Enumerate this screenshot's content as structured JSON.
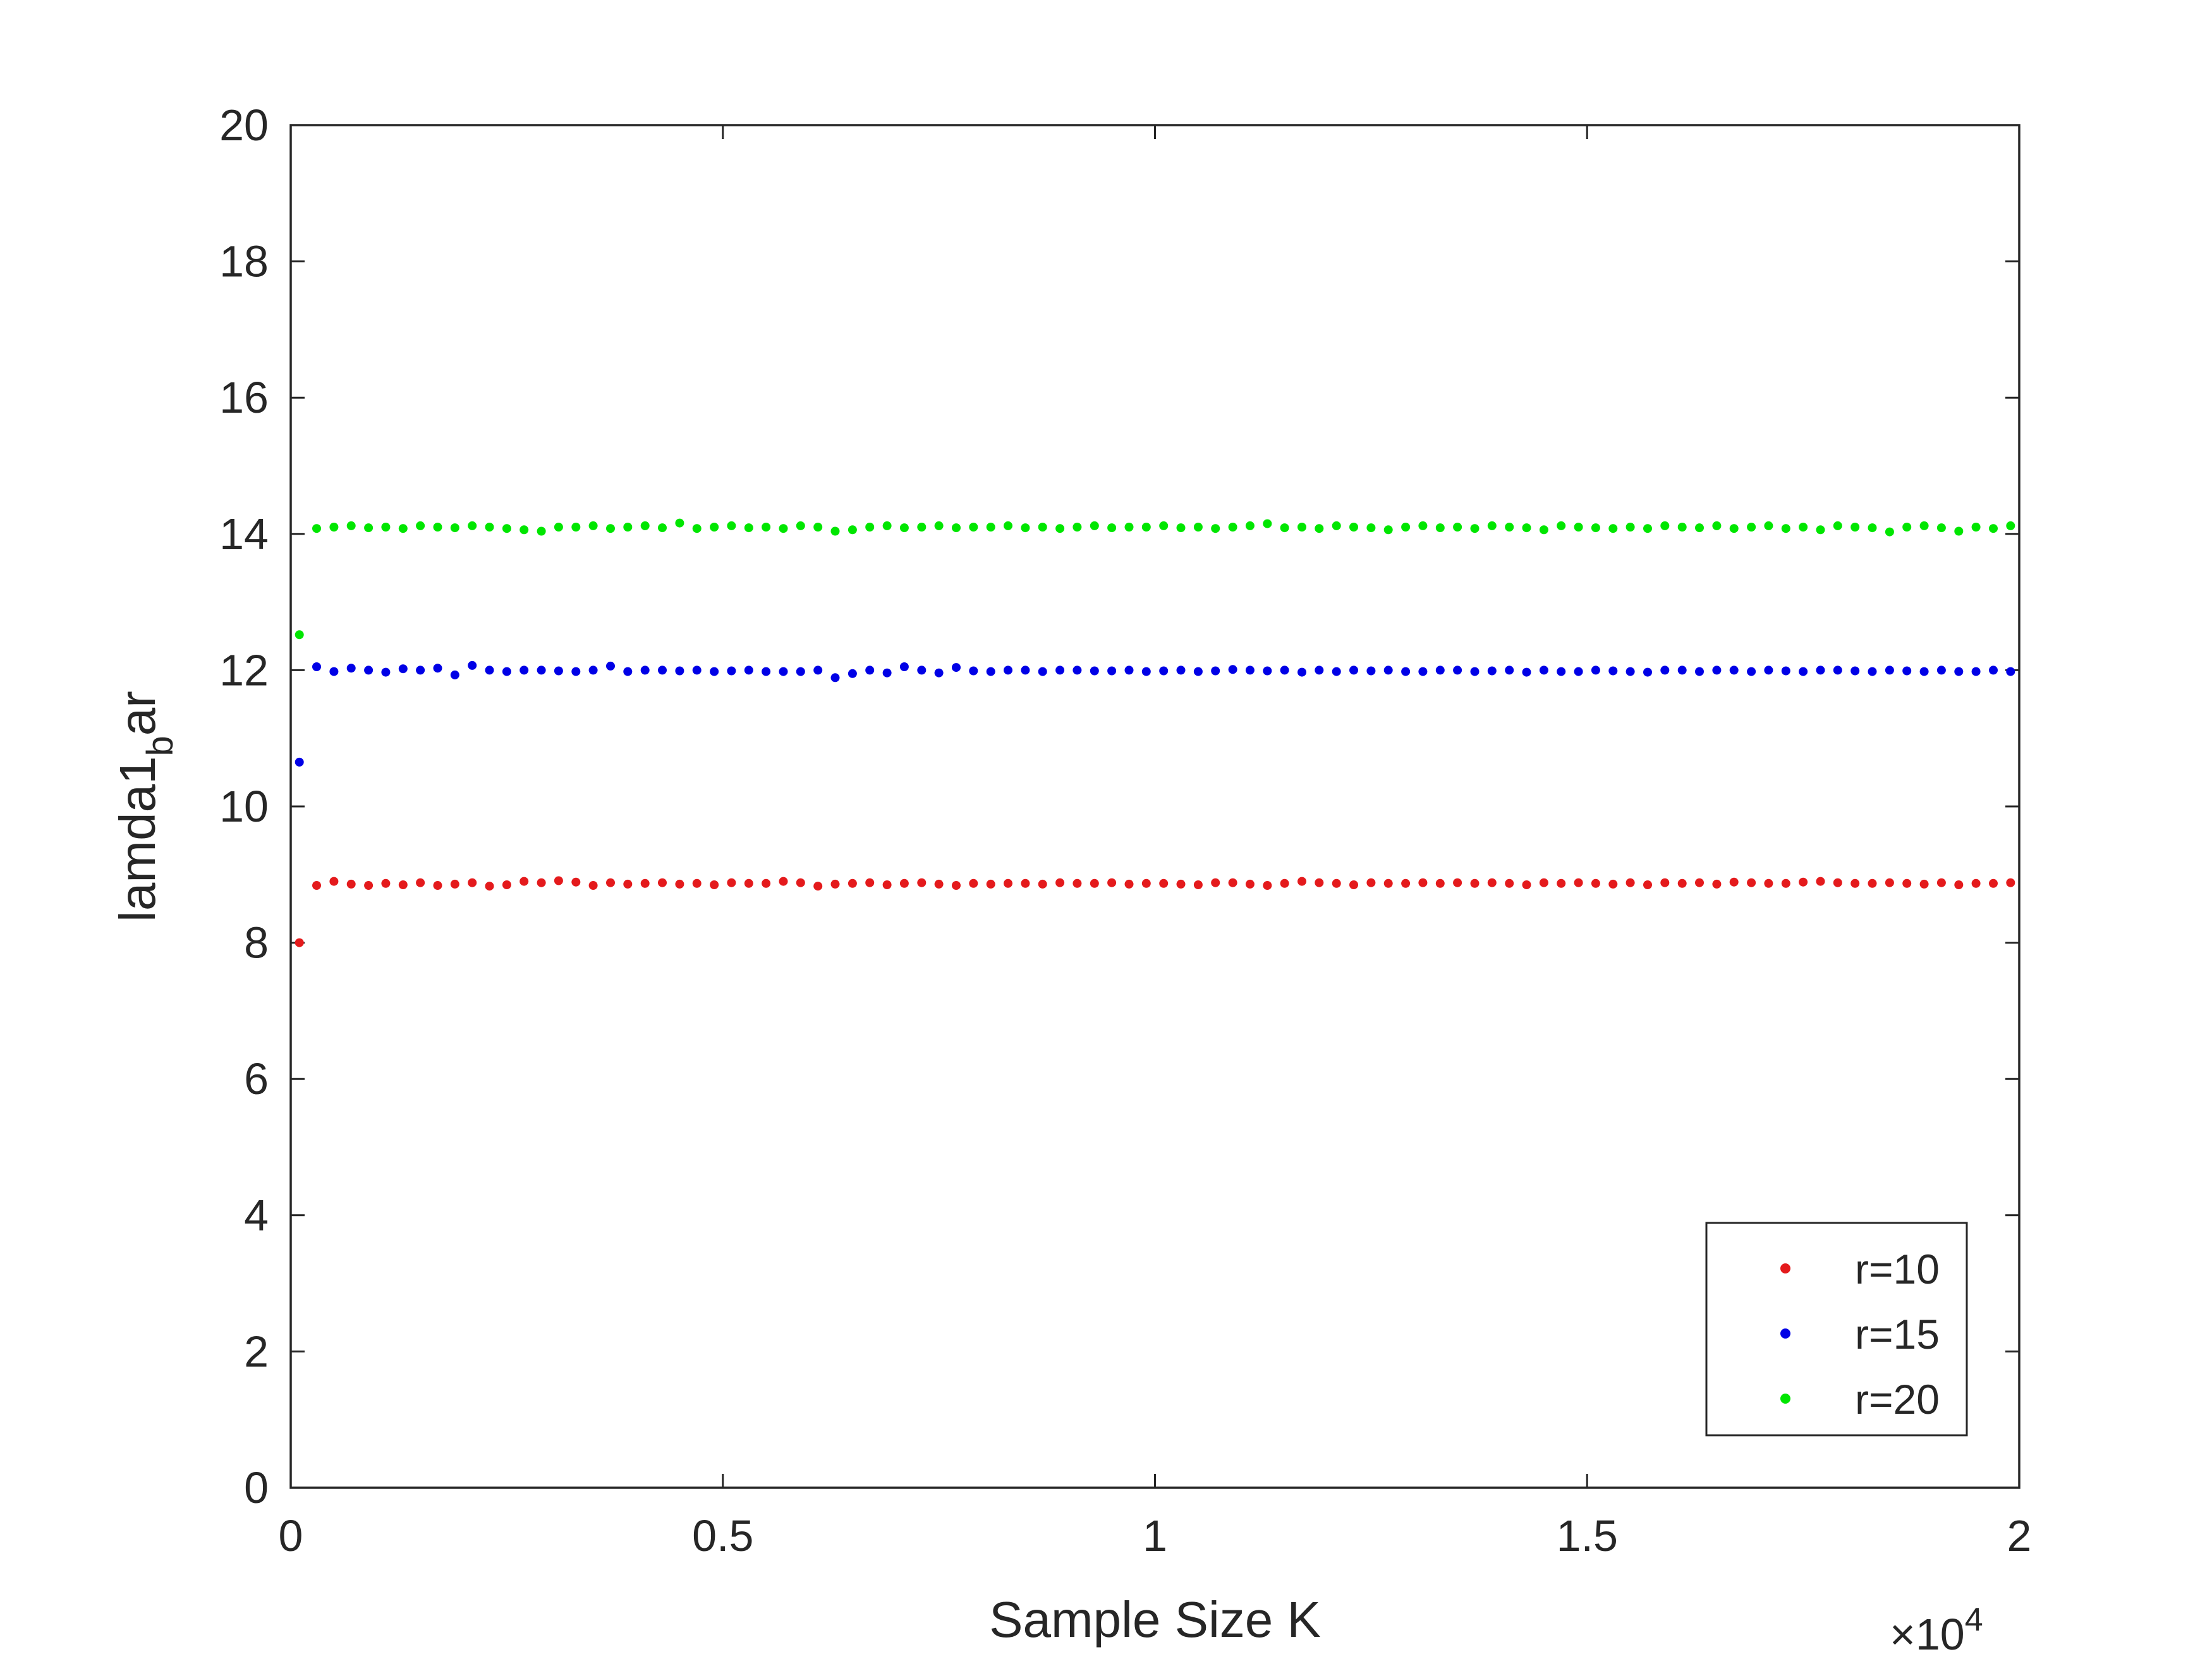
{
  "chart_data": {
    "type": "scatter",
    "xlabel": "Sample Size K",
    "ylabel_main": "lamda1",
    "ylabel_sub": "b",
    "ylabel_tail": "ar",
    "x_exponent_prefix": "×10",
    "x_exponent_power": "4",
    "xlim": [
      0,
      20000
    ],
    "ylim": [
      0,
      20
    ],
    "x_ticks": [
      0,
      5000,
      10000,
      15000,
      20000
    ],
    "x_tick_labels": [
      "0",
      "0.5",
      "1",
      "1.5",
      "2"
    ],
    "y_ticks": [
      0,
      2,
      4,
      6,
      8,
      10,
      12,
      14,
      16,
      18,
      20
    ],
    "y_tick_labels": [
      "0",
      "2",
      "4",
      "6",
      "8",
      "10",
      "12",
      "14",
      "16",
      "18",
      "20"
    ],
    "grid": false,
    "legend_position": "bottom-right",
    "x_start": 100,
    "x_step": 200,
    "series": [
      {
        "name": "r=10",
        "color": "#e41a1c",
        "values": [
          8.0,
          8.84,
          8.9,
          8.86,
          8.84,
          8.87,
          8.85,
          8.88,
          8.84,
          8.86,
          8.88,
          8.83,
          8.85,
          8.9,
          8.88,
          8.91,
          8.89,
          8.84,
          8.88,
          8.86,
          8.87,
          8.88,
          8.86,
          8.87,
          8.85,
          8.88,
          8.87,
          8.87,
          8.9,
          8.88,
          8.83,
          8.86,
          8.87,
          8.88,
          8.85,
          8.87,
          8.88,
          8.86,
          8.84,
          8.87,
          8.86,
          8.87,
          8.87,
          8.86,
          8.88,
          8.87,
          8.87,
          8.88,
          8.86,
          8.87,
          8.87,
          8.86,
          8.85,
          8.88,
          8.88,
          8.86,
          8.84,
          8.87,
          8.9,
          8.88,
          8.87,
          8.85,
          8.88,
          8.87,
          8.87,
          8.88,
          8.87,
          8.88,
          8.87,
          8.88,
          8.87,
          8.85,
          8.88,
          8.87,
          8.88,
          8.87,
          8.86,
          8.88,
          8.85,
          8.88,
          8.87,
          8.88,
          8.86,
          8.89,
          8.88,
          8.87,
          8.87,
          8.89,
          8.9,
          8.88,
          8.87,
          8.87,
          8.88,
          8.87,
          8.86,
          8.88,
          8.85,
          8.87,
          8.87,
          8.88,
          8.87,
          8.86,
          8.88,
          8.87,
          8.87,
          8.86,
          8.89,
          8.87,
          8.88,
          8.86,
          8.87,
          8.88,
          8.87,
          8.86,
          8.85,
          8.87,
          8.86,
          8.87,
          8.89,
          8.86,
          8.87,
          8.88,
          8.87,
          8.88,
          8.86,
          8.87,
          8.88,
          8.86,
          8.87,
          8.87,
          8.86,
          8.87,
          8.84,
          8.87,
          8.88,
          8.85,
          8.86,
          8.88,
          8.9,
          8.87,
          8.86,
          8.88,
          8.85,
          8.87,
          8.88,
          8.87,
          8.88,
          8.87,
          8.88,
          8.86,
          8.87,
          8.87,
          8.88,
          8.87,
          8.87,
          8.86,
          8.88,
          8.87,
          8.86,
          8.86,
          8.87,
          8.88,
          8.87,
          8.87,
          8.87,
          8.86,
          8.88,
          8.9,
          8.87,
          8.87,
          8.88,
          8.86,
          8.87,
          8.87,
          8.88,
          8.87,
          8.86,
          8.87,
          8.88,
          8.87,
          8.87,
          8.86,
          8.87,
          8.86,
          8.87,
          8.87,
          8.86,
          8.87,
          8.88,
          8.87,
          8.87,
          8.86,
          8.87,
          8.87,
          8.86,
          8.87,
          8.87,
          8.87,
          8.86,
          8.88,
          8.87,
          8.87,
          8.87,
          8.86
        ]
      },
      {
        "name": "r=15",
        "color": "#0000e6",
        "values": [
          10.65,
          12.05,
          11.98,
          12.03,
          12.0,
          11.97,
          12.02,
          12.0,
          12.03,
          11.93,
          12.07,
          12.0,
          11.98,
          12.0,
          12.0,
          11.99,
          11.98,
          12.0,
          12.06,
          11.98,
          12.0,
          12.0,
          11.99,
          12.0,
          11.98,
          11.99,
          12.0,
          11.98,
          11.98,
          11.98,
          12.0,
          11.89,
          11.95,
          12.0,
          11.96,
          12.05,
          12.0,
          11.96,
          12.04,
          11.99,
          11.98,
          12.0,
          12.0,
          11.98,
          12.0,
          12.0,
          11.99,
          11.99,
          12.0,
          11.98,
          11.99,
          12.0,
          11.98,
          11.99,
          12.01,
          12.0,
          11.99,
          12.0,
          11.97,
          12.0,
          11.98,
          12.0,
          11.99,
          12.0,
          11.98,
          11.98,
          12.0,
          12.0,
          11.98,
          11.99,
          12.0,
          11.97,
          12.0,
          11.98,
          11.98,
          12.0,
          11.99,
          11.98,
          11.97,
          12.0,
          12.0,
          11.98,
          12.0,
          12.0,
          11.98,
          12.0,
          11.99,
          11.98,
          12.0,
          12.0,
          11.99,
          11.98,
          12.0,
          11.99,
          11.98,
          12.0,
          11.98,
          11.98,
          12.0,
          11.98,
          12.0,
          11.99,
          11.96,
          12.06,
          11.98,
          12.0,
          11.99,
          11.97,
          12.0,
          12.0,
          11.98,
          11.96,
          12.01,
          12.0,
          12.04,
          11.98,
          12.04,
          12.04,
          11.98,
          12.0,
          11.91,
          12.0,
          11.98,
          11.98,
          12.0,
          12.0,
          11.98,
          12.0,
          11.98,
          11.97,
          12.0,
          11.99,
          11.98,
          12.0,
          11.96,
          11.99,
          12.0,
          12.05,
          11.98,
          11.99,
          11.98,
          11.98,
          12.0,
          12.0,
          11.99,
          11.97,
          11.98,
          12.0,
          11.98,
          12.0,
          12.0,
          12.02,
          12.04,
          11.98,
          12.0,
          12.02,
          12.03,
          11.99,
          11.99,
          11.98,
          12.0,
          12.0,
          11.99,
          11.98,
          12.0,
          12.0,
          11.99,
          11.98,
          12.0,
          12.0,
          11.99,
          11.98,
          12.0,
          11.99,
          11.98,
          12.0,
          12.0,
          11.99,
          11.98,
          12.0,
          11.98,
          12.0,
          11.99,
          11.98,
          12.02,
          11.99,
          11.97,
          12.0,
          11.98,
          12.0,
          11.98,
          12.0,
          11.99,
          11.98,
          11.96
        ]
      },
      {
        "name": "r=20",
        "color": "#00e600",
        "values": [
          12.52,
          14.08,
          14.1,
          14.12,
          14.09,
          14.1,
          14.08,
          14.12,
          14.1,
          14.09,
          14.12,
          14.1,
          14.08,
          14.06,
          14.04,
          14.1,
          14.1,
          14.12,
          14.08,
          14.1,
          14.12,
          14.09,
          14.16,
          14.08,
          14.1,
          14.12,
          14.09,
          14.1,
          14.08,
          14.12,
          14.1,
          14.04,
          14.06,
          14.1,
          14.12,
          14.09,
          14.1,
          14.12,
          14.09,
          14.1,
          14.1,
          14.12,
          14.09,
          14.1,
          14.08,
          14.1,
          14.12,
          14.09,
          14.1,
          14.1,
          14.12,
          14.09,
          14.1,
          14.08,
          14.1,
          14.12,
          14.15,
          14.09,
          14.1,
          14.08,
          14.12,
          14.1,
          14.09,
          14.06,
          14.1,
          14.12,
          14.09,
          14.1,
          14.08,
          14.12,
          14.1,
          14.09,
          14.06,
          14.12,
          14.1,
          14.09,
          14.08,
          14.1,
          14.08,
          14.12,
          14.1,
          14.09,
          14.12,
          14.08,
          14.1,
          14.12,
          14.08,
          14.1,
          14.06,
          14.12,
          14.1,
          14.09,
          14.03,
          14.1,
          14.12,
          14.09,
          14.04,
          14.1,
          14.08,
          14.12,
          14.1,
          14.09,
          14.08,
          14.1,
          14.12,
          14.1,
          14.07,
          14.09,
          14.12,
          14.08,
          14.04,
          14.1,
          14.12,
          14.09,
          14.08,
          14.06,
          14.08,
          14.1,
          14.12,
          14.09,
          14.08,
          14.06,
          14.1,
          14.12,
          14.08,
          14.1,
          14.12,
          14.09,
          14.05,
          14.1,
          14.12,
          14.09,
          14.08,
          14.1,
          14.12,
          14.09,
          14.1,
          14.1,
          14.12,
          14.08,
          14.1,
          14.12,
          14.09,
          14.03,
          14.1,
          14.12,
          14.09,
          14.08,
          14.06,
          14.08,
          14.1,
          14.12,
          14.06,
          14.1,
          14.09,
          14.1,
          14.08,
          14.1,
          14.08,
          14.1,
          14.08,
          14.12,
          14.06,
          14.1,
          14.1,
          14.08,
          14.1,
          14.09,
          14.1,
          14.08,
          14.1,
          14.08,
          14.1,
          14.07,
          14.1,
          14.08,
          14.1,
          14.08,
          14.1,
          14.05,
          14.1,
          14.1,
          14.08,
          14.1,
          14.09,
          14.1,
          14.06,
          14.1,
          14.08,
          14.1,
          14.09,
          14.06,
          14.1,
          14.08,
          14.1,
          14.09,
          14.08,
          14.06,
          14.1,
          14.12
        ]
      }
    ]
  }
}
